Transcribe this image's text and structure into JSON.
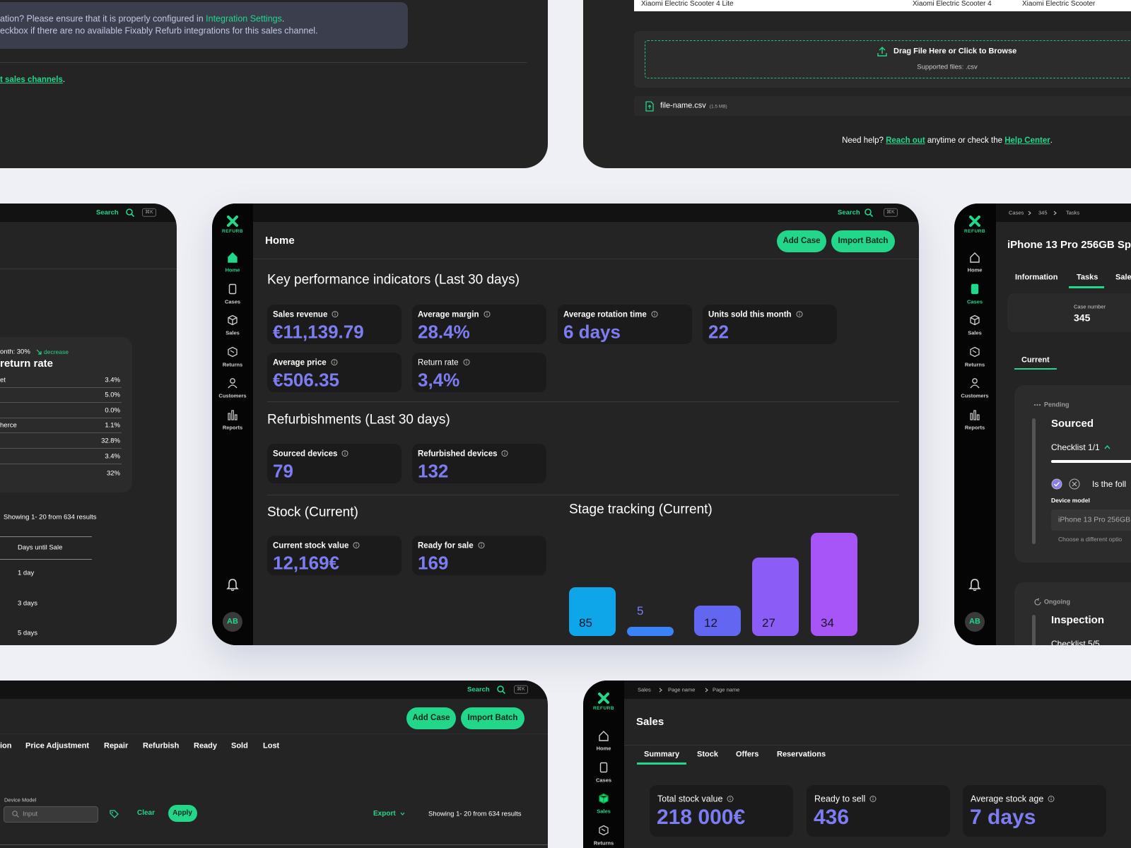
{
  "integration_panel": {
    "notice_prefix": "ation? Please ensure that it is properly configured in ",
    "notice_link": "Integration Settings",
    "notice_suffix": ".",
    "notice_line2": "eckbox if there are no available Fixably Refurb integrations for this sales channel.",
    "footer_link": "t sales channels",
    "footer_suffix": "."
  },
  "import_panel": {
    "table_row": [
      "Xiaomi Electric Scooter 4 Lite",
      "Xiaomi Electric Scooter 4",
      "Xiaomi Electric Scooter"
    ],
    "drop_title": "Drag File Here or Click to Browse",
    "drop_hint": "Supported files: .csv",
    "file_name": "file-name.csv",
    "file_size": "(1.5 MB)",
    "help_prefix": "Need help? ",
    "help_link1": "Reach out",
    "help_middle": " anytime or check the ",
    "help_link2": "Help Center",
    "help_suffix": "."
  },
  "returns_panel": {
    "search": "Search",
    "shortcut": "⌘K",
    "card_subtitle": "onth: 30%",
    "card_trend": "decrease",
    "card_title": "return rate",
    "rows": [
      {
        "label": "et",
        "value": "3.4%"
      },
      {
        "value": "5.0%"
      },
      {
        "value": "0.0%"
      },
      {
        "label": "herce",
        "value": "1.1%"
      },
      {
        "value": "32.8%"
      },
      {
        "value": "3.4%"
      },
      {
        "value": "32%"
      }
    ],
    "results": "Showing 1- 20 from 634 results",
    "column": "Days until Sale",
    "days": [
      "1 day",
      "3 days",
      "5 days"
    ]
  },
  "dashboard": {
    "logo": "REFURB",
    "nav": [
      "Home",
      "Cases",
      "Sales",
      "Returns",
      "Customers",
      "Reports"
    ],
    "avatar": "AB",
    "search": "Search",
    "shortcut": "⌘K",
    "title": "Home",
    "actions": [
      "Add Case",
      "Import Batch"
    ],
    "kpi": {
      "title": "Key performance indicators (Last 30 days)",
      "cards": [
        {
          "label": "Sales revenue",
          "value": "€11,139.79"
        },
        {
          "label": "Average margin",
          "value": "28.4%"
        },
        {
          "label": "Average rotation time",
          "value": "6 days"
        },
        {
          "label": "Units sold this month",
          "value": 22
        },
        {
          "label": "Average price",
          "value": "€506.35"
        },
        {
          "label": "Return rate",
          "value": "3,4%"
        }
      ]
    },
    "refurbishments": {
      "title": "Refurbishments (Last 30 days)",
      "cards": [
        {
          "label": "Sourced devices",
          "value": 79
        },
        {
          "label": "Refurbished devices",
          "value": 132
        }
      ]
    },
    "stock": {
      "title": "Stock (Current)",
      "cards": [
        {
          "label": "Current stock value",
          "value": "12,169€"
        },
        {
          "label": "Ready for sale",
          "value": 169
        }
      ]
    },
    "stage_tracking": {
      "title": "Stage tracking (Current)",
      "values": [
        85,
        5,
        12,
        27,
        34
      ]
    }
  },
  "case_panel": {
    "logo": "REFURB",
    "nav": [
      "Home",
      "Cases",
      "Sales",
      "Returns",
      "Customers",
      "Reports"
    ],
    "avatar": "AB",
    "breadcrumb": [
      "Cases",
      "345",
      "Tasks"
    ],
    "title": "iPhone 13 Pro 256GB Sp",
    "tabs": [
      "Information",
      "Tasks",
      "Sale"
    ],
    "case_label": "Case number",
    "case_number": "345",
    "current": "Current",
    "pending": "Pending",
    "sourced": "Sourced",
    "checklist": "Checklist 1/1",
    "question": "Is the foll",
    "device_label": "Device model",
    "device_value": "iPhone 13 Pro 256GB",
    "choose": "Choose a different optio",
    "ongoing": "Ongoing",
    "inspection": "Inspection",
    "checklist2": "Checklist 5/5"
  },
  "cases_panel": {
    "search": "Search",
    "shortcut": "⌘K",
    "actions": [
      "Add Case",
      "Import Batch"
    ],
    "tabs": [
      "ion",
      "Price Adjustment",
      "Repair",
      "Refurbish",
      "Ready",
      "Sold",
      "Lost"
    ],
    "filter_label": "Device Model",
    "input_placeholder": "Input",
    "clear": "Clear",
    "apply": "Apply",
    "export": "Export",
    "results": "Showing 1- 20 from 634 results"
  },
  "sales_panel": {
    "logo": "REFURB",
    "nav": [
      "Home",
      "Cases",
      "Sales",
      "Returns"
    ],
    "breadcrumb": [
      "Sales",
      "Page name",
      "Page name"
    ],
    "title": "Sales",
    "tabs": [
      "Summary",
      "Stock",
      "Offers",
      "Reservations"
    ],
    "cards": [
      {
        "label": "Total stock value",
        "value": "218 000€"
      },
      {
        "label": "Ready to sell",
        "value": 436
      },
      {
        "label": "Average stock age",
        "value": "7 days"
      }
    ]
  }
}
